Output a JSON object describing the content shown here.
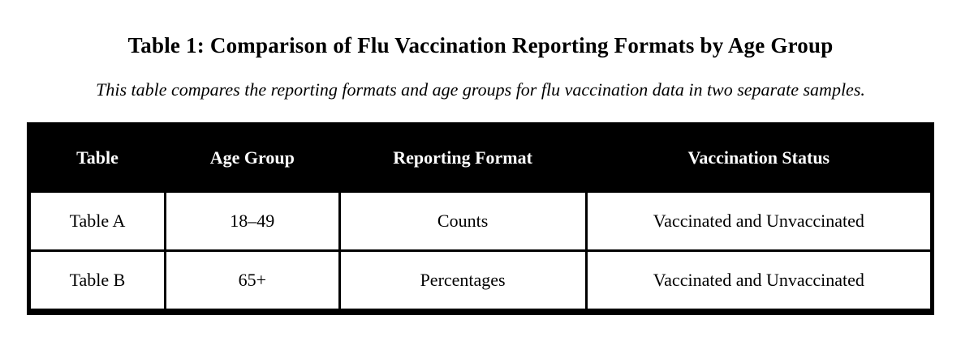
{
  "document": {
    "title": "Table 1: Comparison of Flu Vaccination Reporting Formats by Age Group",
    "description": "This table compares the reporting formats and age groups for flu vaccination data in two separate samples."
  },
  "table": {
    "columns": [
      "Table",
      "Age Group",
      "Reporting Format",
      "Vaccination Status"
    ],
    "rows": [
      [
        "Table A",
        "18–49",
        "Counts",
        "Vaccinated and Unvaccinated"
      ],
      [
        "Table B",
        "65+",
        "Percentages",
        "Vaccinated and Unvaccinated"
      ]
    ]
  },
  "colors": {
    "page_background": "#ffffff",
    "header_background": "#000000",
    "header_text": "#ffffff",
    "body_text": "#000000",
    "border": "#000000"
  }
}
